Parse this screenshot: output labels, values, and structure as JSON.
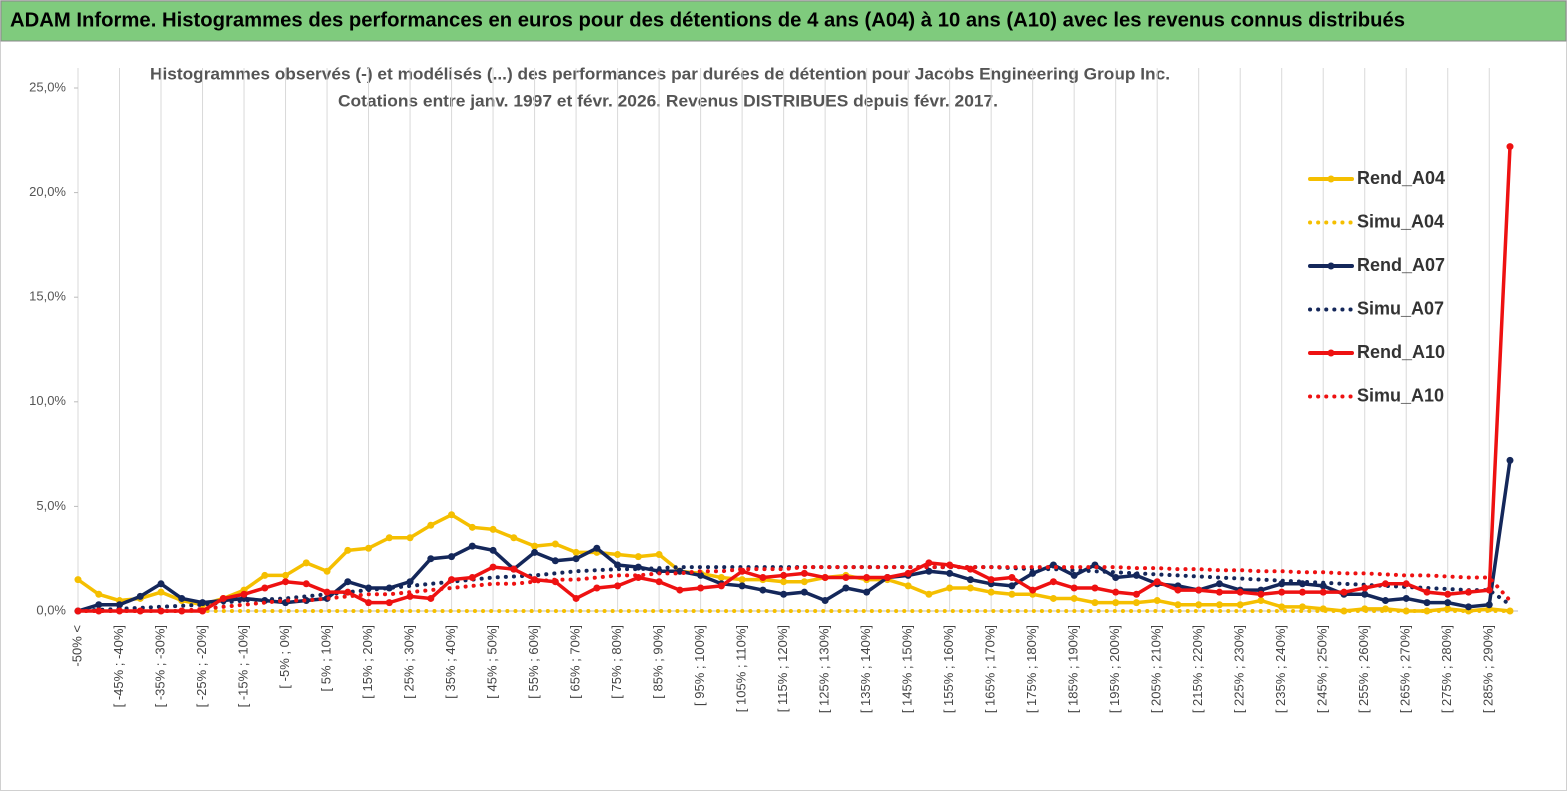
{
  "header": {
    "title": "ADAM Informe. Histogrammes des performances en euros pour des détentions de 4 ans (A04) à 10 ans (A10) avec les revenus connus distribués"
  },
  "chart_data": {
    "type": "line",
    "subtitle": [
      "Histogrammes observés (-) et modélisés (...)  des performances par durées de détention pour Jacobs Engineering Group Inc.",
      "Cotations entre janv. 1997 et févr. 2026. Revenus DISTRIBUES depuis févr. 2017."
    ],
    "categories": [
      "-50% <",
      null,
      "[ -45% ; -40%]",
      null,
      "[ -35% ; -30%]",
      null,
      "[ -25% ; -20%]",
      null,
      "[ -15% ; -10%]",
      null,
      "[ -5% ; 0%]",
      null,
      "[ 5% ; 10%]",
      null,
      "[ 15% ; 20%]",
      null,
      "[ 25% ; 30%]",
      null,
      "[ 35% ; 40%]",
      null,
      "[ 45% ; 50%]",
      null,
      "[ 55% ; 60%]",
      null,
      "[ 65% ; 70%]",
      null,
      "[ 75% ; 80%]",
      null,
      "[ 85% ; 90%]",
      null,
      "[ 95% ; 100%]",
      null,
      "[ 105% ; 110%]",
      null,
      "[ 115% ; 120%]",
      null,
      "[ 125% ; 130%]",
      null,
      "[ 135% ; 140%]",
      null,
      "[ 145% ; 150%]",
      null,
      "[ 155% ; 160%]",
      null,
      "[ 165% ; 170%]",
      null,
      "[ 175% ; 180%]",
      null,
      "[ 185% ; 190%]",
      null,
      "[ 195% ; 200%]",
      null,
      "[ 205% ; 210%]",
      null,
      "[ 215% ; 220%]",
      null,
      "[ 225% ; 230%]",
      null,
      "[ 235% ; 240%]",
      null,
      "[ 245% ; 250%]",
      null,
      "[ 255% ; 260%]",
      null,
      "[ 265% ; 270%]",
      null,
      "[ 275% ; 280%]",
      null,
      "[ 285% ; 290%]",
      null
    ],
    "series": [
      {
        "name": "Rend_A04",
        "color": "#f5bf00",
        "style": "solid",
        "markers": true,
        "values": [
          1.5,
          0.8,
          0.5,
          0.6,
          0.9,
          0.5,
          0.3,
          0.6,
          1.0,
          1.7,
          1.7,
          2.3,
          1.9,
          2.9,
          3.0,
          3.5,
          3.5,
          4.1,
          4.6,
          4.0,
          3.9,
          3.5,
          3.1,
          3.2,
          2.8,
          2.8,
          2.7,
          2.6,
          2.7,
          1.9,
          1.8,
          1.6,
          1.5,
          1.5,
          1.4,
          1.4,
          1.6,
          1.7,
          1.5,
          1.5,
          1.2,
          0.8,
          1.1,
          1.1,
          0.9,
          0.8,
          0.8,
          0.6,
          0.6,
          0.4,
          0.4,
          0.4,
          0.5,
          0.3,
          0.3,
          0.3,
          0.3,
          0.5,
          0.2,
          0.2,
          0.1,
          0.0,
          0.1,
          0.1,
          0.0,
          0.0,
          0.1,
          0.0,
          0.1,
          0.0
        ]
      },
      {
        "name": "Simu_A04",
        "color": "#f5bf00",
        "style": "dotted",
        "markers": false,
        "values": [
          0,
          0,
          0,
          0,
          0,
          0,
          0,
          0,
          0,
          0,
          0,
          0,
          0,
          0,
          0,
          0,
          0,
          0,
          0,
          0,
          0,
          0,
          0,
          0,
          0,
          0,
          0,
          0,
          0,
          0,
          0,
          0,
          0,
          0,
          0,
          0,
          0,
          0,
          0,
          0,
          0,
          0,
          0,
          0,
          0,
          0,
          0,
          0,
          0,
          0,
          0,
          0,
          0,
          0,
          0,
          0,
          0,
          0,
          0,
          0,
          0,
          0,
          0,
          0,
          0,
          0,
          0,
          0,
          0,
          0
        ]
      },
      {
        "name": "Rend_A07",
        "color": "#14275a",
        "style": "solid",
        "markers": true,
        "values": [
          0.0,
          0.3,
          0.3,
          0.7,
          1.3,
          0.6,
          0.4,
          0.5,
          0.6,
          0.5,
          0.4,
          0.5,
          0.6,
          1.4,
          1.1,
          1.1,
          1.4,
          2.5,
          2.6,
          3.1,
          2.9,
          2.0,
          2.8,
          2.4,
          2.5,
          3.0,
          2.2,
          2.1,
          1.9,
          1.9,
          1.7,
          1.3,
          1.2,
          1.0,
          0.8,
          0.9,
          0.5,
          1.1,
          0.9,
          1.6,
          1.7,
          1.9,
          1.8,
          1.5,
          1.3,
          1.2,
          1.8,
          2.2,
          1.7,
          2.2,
          1.6,
          1.7,
          1.3,
          1.2,
          1.0,
          1.3,
          1.0,
          1.0,
          1.3,
          1.3,
          1.2,
          0.8,
          0.8,
          0.5,
          0.6,
          0.4,
          0.4,
          0.2,
          0.3,
          7.2
        ]
      },
      {
        "name": "Simu_A07",
        "color": "#14275a",
        "style": "dotted",
        "markers": false,
        "values": [
          0,
          0.05,
          0.1,
          0.15,
          0.2,
          0.25,
          0.3,
          0.4,
          0.5,
          0.55,
          0.6,
          0.7,
          0.8,
          0.9,
          1.0,
          1.1,
          1.2,
          1.3,
          1.4,
          1.5,
          1.6,
          1.65,
          1.7,
          1.8,
          1.9,
          1.95,
          2.0,
          2.0,
          2.05,
          2.1,
          2.1,
          2.1,
          2.1,
          2.1,
          2.1,
          2.1,
          2.1,
          2.1,
          2.1,
          2.1,
          2.1,
          2.1,
          2.1,
          2.1,
          2.1,
          2.05,
          2.0,
          2.0,
          1.95,
          1.9,
          1.85,
          1.8,
          1.75,
          1.7,
          1.65,
          1.6,
          1.55,
          1.5,
          1.45,
          1.4,
          1.35,
          1.3,
          1.25,
          1.2,
          1.15,
          1.1,
          1.05,
          1.0,
          1.0,
          0.3
        ]
      },
      {
        "name": "Rend_A10",
        "color": "#ee1111",
        "style": "solid",
        "markers": true,
        "values": [
          0.0,
          0.0,
          0.0,
          0.0,
          0.0,
          0.0,
          0.0,
          0.6,
          0.8,
          1.1,
          1.4,
          1.3,
          0.9,
          0.9,
          0.4,
          0.4,
          0.7,
          0.6,
          1.5,
          1.6,
          2.1,
          2.0,
          1.5,
          1.4,
          0.6,
          1.1,
          1.2,
          1.6,
          1.4,
          1.0,
          1.1,
          1.2,
          1.9,
          1.6,
          1.7,
          1.8,
          1.6,
          1.6,
          1.6,
          1.6,
          1.8,
          2.3,
          2.2,
          2.0,
          1.5,
          1.6,
          1.0,
          1.4,
          1.1,
          1.1,
          0.9,
          0.8,
          1.4,
          1.0,
          1.0,
          0.9,
          0.9,
          0.8,
          0.9,
          0.9,
          0.9,
          0.9,
          1.1,
          1.3,
          1.3,
          0.9,
          0.8,
          0.9,
          1.0,
          22.2
        ]
      },
      {
        "name": "Simu_A10",
        "color": "#ee1111",
        "style": "dotted",
        "markers": false,
        "values": [
          0,
          0,
          0,
          0,
          0,
          0,
          0.1,
          0.2,
          0.3,
          0.4,
          0.5,
          0.5,
          0.6,
          0.7,
          0.8,
          0.8,
          0.9,
          1.0,
          1.1,
          1.2,
          1.3,
          1.3,
          1.4,
          1.5,
          1.5,
          1.6,
          1.7,
          1.7,
          1.8,
          1.8,
          1.9,
          1.9,
          2.0,
          2.0,
          2.0,
          2.1,
          2.1,
          2.1,
          2.1,
          2.1,
          2.1,
          2.1,
          2.1,
          2.1,
          2.1,
          2.1,
          2.1,
          2.1,
          2.1,
          2.1,
          2.1,
          2.05,
          2.05,
          2.0,
          2.0,
          1.95,
          1.95,
          1.9,
          1.9,
          1.85,
          1.85,
          1.8,
          1.8,
          1.75,
          1.7,
          1.7,
          1.65,
          1.6,
          1.6,
          0.5
        ]
      }
    ],
    "ylim": [
      0,
      25
    ],
    "yticks": [
      {
        "value": 0,
        "label": "0,0%"
      },
      {
        "value": 5,
        "label": "5,0%"
      },
      {
        "value": 10,
        "label": "10,0%"
      },
      {
        "value": 15,
        "label": "15,0%"
      },
      {
        "value": 20,
        "label": "20,0%"
      },
      {
        "value": 25,
        "label": "25,0%"
      }
    ],
    "xgrid": true,
    "legend": "right"
  }
}
